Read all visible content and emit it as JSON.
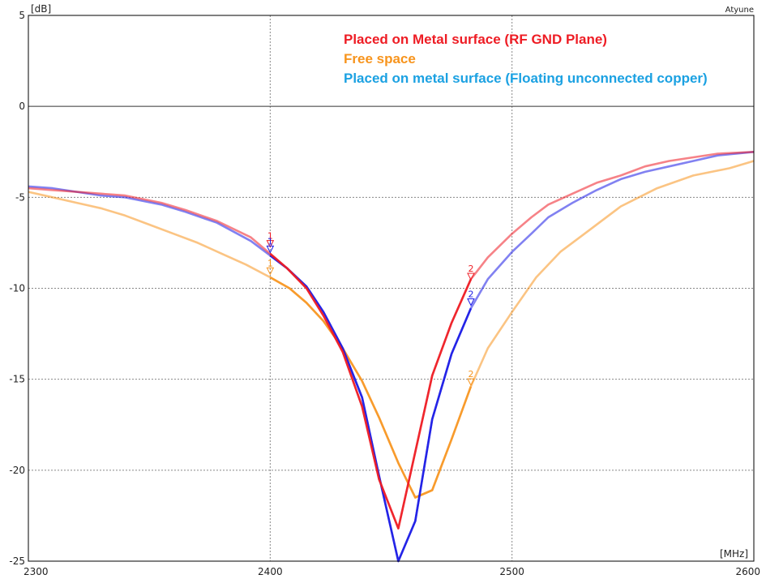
{
  "chart_data": {
    "type": "line",
    "title": "",
    "instrument_label": "Atyune",
    "y_unit": "[dB]",
    "x_unit": "[MHz]",
    "xlim": [
      2300,
      2600
    ],
    "ylim": [
      -25,
      5
    ],
    "x_ticks": [
      2300,
      2400,
      2500,
      2600
    ],
    "y_ticks": [
      5,
      0,
      -5,
      -10,
      -15,
      -20,
      -25
    ],
    "major_y_ticks": [
      0
    ],
    "grid": true,
    "legend_position": "top-right",
    "series": [
      {
        "name": "Placed on Metal surface (RF GND Plane)",
        "color": "#ee1c24",
        "x": [
          2300,
          2310,
          2320,
          2330,
          2340,
          2355,
          2365,
          2378,
          2392,
          2400,
          2407,
          2415,
          2422,
          2430,
          2438,
          2445,
          2453,
          2460,
          2467,
          2475,
          2483,
          2490,
          2500,
          2508,
          2515,
          2525,
          2535,
          2545,
          2555,
          2565,
          2575,
          2585,
          2600
        ],
        "values": [
          -4.5,
          -4.6,
          -4.7,
          -4.8,
          -4.9,
          -5.3,
          -5.7,
          -6.3,
          -7.2,
          -8.1,
          -8.9,
          -10.0,
          -11.5,
          -13.5,
          -16.5,
          -20.5,
          -23.2,
          -19.0,
          -14.8,
          -11.9,
          -9.5,
          -8.3,
          -7.0,
          -6.1,
          -5.4,
          -4.8,
          -4.2,
          -3.8,
          -3.3,
          -3.0,
          -2.8,
          -2.6,
          -2.5
        ]
      },
      {
        "name": "Free space",
        "color": "#f7941d",
        "x": [
          2300,
          2310,
          2320,
          2330,
          2340,
          2350,
          2360,
          2370,
          2380,
          2390,
          2400,
          2408,
          2415,
          2422,
          2430,
          2438,
          2445,
          2453,
          2460,
          2467,
          2475,
          2483,
          2490,
          2500,
          2510,
          2520,
          2530,
          2545,
          2560,
          2575,
          2590,
          2600
        ],
        "values": [
          -4.7,
          -5.0,
          -5.3,
          -5.6,
          -6.0,
          -6.5,
          -7.0,
          -7.5,
          -8.1,
          -8.7,
          -9.4,
          -10.0,
          -10.8,
          -11.8,
          -13.3,
          -15.1,
          -17.1,
          -19.6,
          -21.5,
          -21.1,
          -18.3,
          -15.4,
          -13.3,
          -11.3,
          -9.4,
          -8.0,
          -7.0,
          -5.5,
          -4.5,
          -3.8,
          -3.4,
          -3.0
        ]
      },
      {
        "name": "Placed on metal surface (Floating unconnected copper)",
        "color": "#1a1ae6",
        "x": [
          2300,
          2310,
          2320,
          2330,
          2340,
          2355,
          2365,
          2378,
          2392,
          2400,
          2407,
          2415,
          2422,
          2430,
          2438,
          2445,
          2453,
          2460,
          2467,
          2475,
          2483,
          2490,
          2500,
          2508,
          2515,
          2525,
          2535,
          2545,
          2555,
          2565,
          2575,
          2585,
          2600
        ],
        "values": [
          -4.4,
          -4.5,
          -4.7,
          -4.9,
          -5.0,
          -5.4,
          -5.8,
          -6.4,
          -7.4,
          -8.2,
          -8.9,
          -9.9,
          -11.3,
          -13.3,
          -16.0,
          -20.3,
          -25.0,
          -22.8,
          -17.2,
          -13.6,
          -11.1,
          -9.5,
          -8.0,
          -7.0,
          -6.1,
          -5.3,
          -4.6,
          -4.0,
          -3.6,
          -3.3,
          -3.0,
          -2.7,
          -2.5
        ]
      }
    ],
    "markers": [
      {
        "label": "1",
        "series": 0,
        "x": 2400,
        "y": -7.6
      },
      {
        "label": "1",
        "series": 2,
        "x": 2400,
        "y": -7.9
      },
      {
        "label": "1",
        "series": 1,
        "x": 2400,
        "y": -9.1
      },
      {
        "label": "2",
        "series": 0,
        "x": 2483,
        "y": -9.4
      },
      {
        "label": "2",
        "series": 2,
        "x": 2483,
        "y": -10.8
      },
      {
        "label": "2",
        "series": 1,
        "x": 2483,
        "y": -15.2
      }
    ]
  }
}
